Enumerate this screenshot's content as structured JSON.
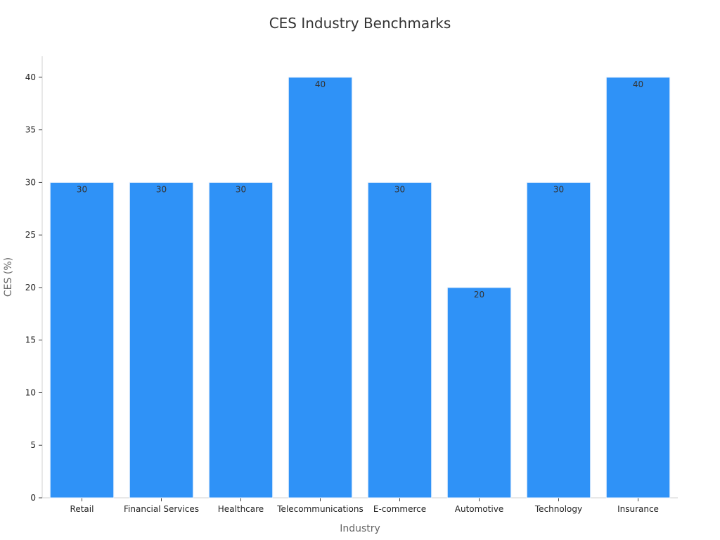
{
  "chart_data": {
    "type": "bar",
    "title": "CES Industry Benchmarks",
    "xlabel": "Industry",
    "ylabel": "CES (%)",
    "categories": [
      "Retail",
      "Financial Services",
      "Healthcare",
      "Telecommunications",
      "E-commerce",
      "Automotive",
      "Technology",
      "Insurance"
    ],
    "values": [
      30,
      30,
      30,
      40,
      30,
      20,
      30,
      40
    ],
    "ylim": [
      0,
      42
    ],
    "yticks": [
      0,
      5,
      10,
      15,
      20,
      25,
      30,
      35,
      40
    ],
    "grid": false,
    "legend": "none",
    "bar_color": "#2f92f7"
  }
}
